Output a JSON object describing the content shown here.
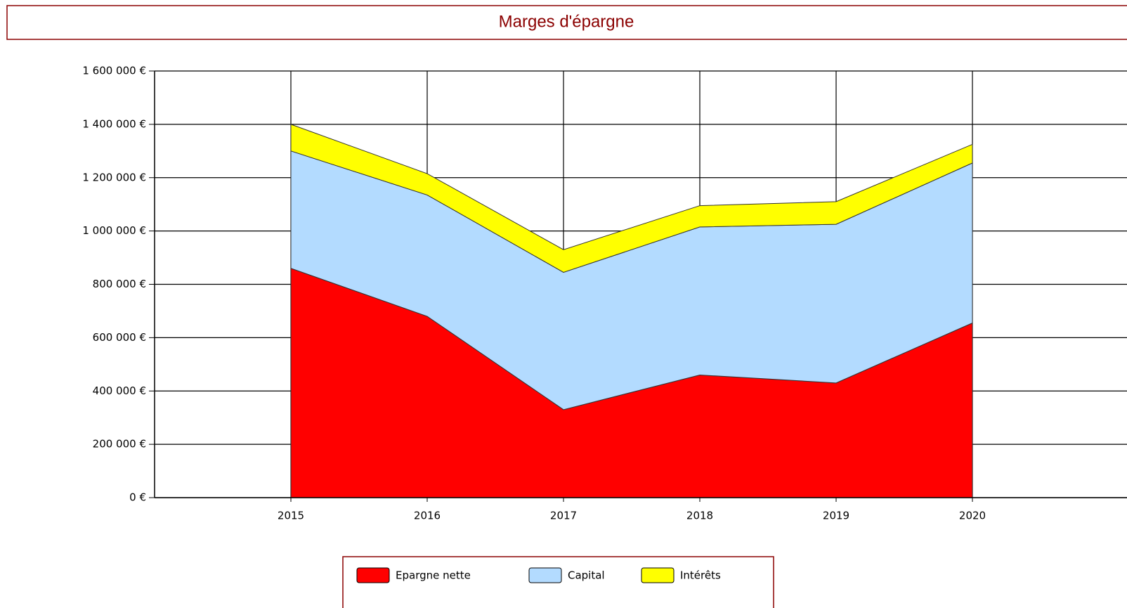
{
  "chart_data": {
    "type": "stacked_area",
    "title": "Marges d'épargne",
    "categories": [
      "2015",
      "2016",
      "2017",
      "2018",
      "2019",
      "2020"
    ],
    "series": [
      {
        "name": "Epargne nette",
        "color": "#ff0000",
        "values": [
          860000,
          680000,
          330000,
          460000,
          430000,
          655000
        ]
      },
      {
        "name": "Capital",
        "color": "#b3dbff",
        "values": [
          440000,
          455000,
          515000,
          555000,
          595000,
          600000
        ]
      },
      {
        "name": "Intérêts",
        "color": "#ffff00",
        "values": [
          100000,
          80000,
          85000,
          80000,
          85000,
          70000
        ]
      }
    ],
    "ylim": [
      0,
      1600000
    ],
    "yticks": [
      {
        "value": 0,
        "label": "0 €"
      },
      {
        "value": 200000,
        "label": "200 000 €"
      },
      {
        "value": 400000,
        "label": "400 000 €"
      },
      {
        "value": 600000,
        "label": "600 000 €"
      },
      {
        "value": 800000,
        "label": "800 000 €"
      },
      {
        "value": 1000000,
        "label": "1 000 000 €"
      },
      {
        "value": 1200000,
        "label": "1 200 000 €"
      },
      {
        "value": 1400000,
        "label": "1 400 000 €"
      },
      {
        "value": 1600000,
        "label": "1 600 000 €"
      }
    ],
    "grid": true,
    "legend": "bottom"
  }
}
